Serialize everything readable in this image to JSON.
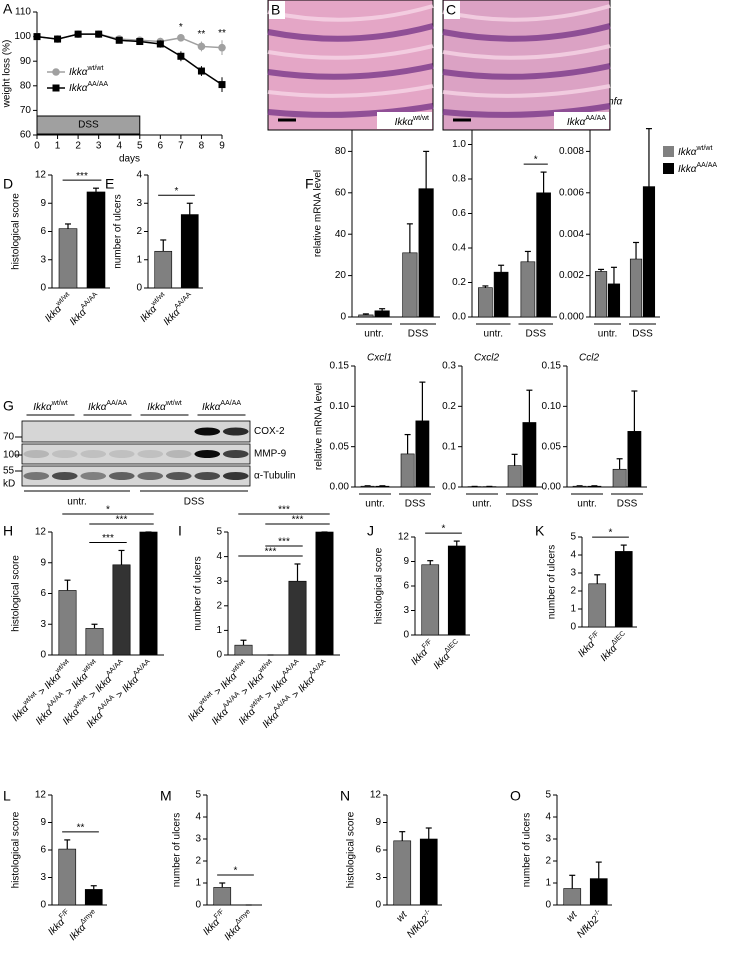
{
  "chart_data": [
    {
      "type": "line",
      "panel_label": "A",
      "xlabel": "days",
      "ylabel": "weight loss (%)",
      "xlim": [
        0,
        9
      ],
      "xticks": [
        0,
        1,
        2,
        3,
        4,
        5,
        6,
        7,
        8,
        9
      ],
      "ylim": [
        60,
        110
      ],
      "yticks": [
        60,
        70,
        80,
        90,
        100,
        110
      ],
      "x": [
        0,
        1,
        2,
        3,
        4,
        5,
        6,
        7,
        8,
        9
      ],
      "series": [
        {
          "name": "Ikkα",
          "sup": "wt/wt",
          "color": "#a0a0a0",
          "marker": "circle",
          "values": [
            100,
            99,
            101,
            101,
            99,
            98.5,
            98,
            99.5,
            96,
            95.5
          ],
          "errors": [
            0.3,
            0.8,
            0.5,
            0.5,
            1,
            1,
            1.5,
            1.5,
            2,
            3
          ]
        },
        {
          "name": "Ikkα",
          "sup": "AA/AA",
          "color": "#000000",
          "marker": "square",
          "values": [
            100,
            99,
            101,
            101,
            98.5,
            98,
            97,
            92,
            86,
            80.5
          ],
          "errors": [
            0.3,
            0.8,
            0.5,
            0.5,
            1,
            1,
            1.5,
            2,
            2,
            3
          ]
        }
      ],
      "annotations": [
        {
          "x": 7,
          "label": "*"
        },
        {
          "x": 8,
          "label": "**"
        },
        {
          "x": 9,
          "label": "**"
        }
      ],
      "band": {
        "label": "DSS",
        "start": 0,
        "end": 5
      }
    },
    {
      "type": "bar",
      "panel_label": "D",
      "ylabel": "histological score",
      "ylim": [
        0,
        12
      ],
      "yticks": [
        0,
        3,
        6,
        9,
        12
      ],
      "categories": [
        [
          {
            "text": "Ikkα",
            "sup": "wt/wt"
          }
        ],
        [
          {
            "text": "Ikkα",
            "sup": "AA/AA"
          }
        ]
      ],
      "values": [
        6.3,
        10.2
      ],
      "errors": [
        0.5,
        0.4
      ],
      "colors": [
        "#808080",
        "#000000"
      ],
      "significance": [
        {
          "from": 0,
          "to": 1,
          "label": "***"
        }
      ]
    },
    {
      "type": "bar",
      "panel_label": "E",
      "ylabel": "number of ulcers",
      "ylim": [
        0,
        4
      ],
      "yticks": [
        0,
        1,
        2,
        3,
        4
      ],
      "categories": [
        [
          {
            "text": "Ikkα",
            "sup": "wt/wt"
          }
        ],
        [
          {
            "text": "Ikkα",
            "sup": "AA/AA"
          }
        ]
      ],
      "values": [
        1.3,
        2.6
      ],
      "errors": [
        0.4,
        0.4
      ],
      "colors": [
        "#808080",
        "#000000"
      ],
      "significance": [
        {
          "from": 0,
          "to": 1,
          "label": "*"
        }
      ]
    },
    {
      "type": "grouped_bar",
      "panel_label": "F",
      "title": "Il1β",
      "ylabel": "relative mRNA level",
      "ylim": [
        0,
        100
      ],
      "yticks": [
        0,
        20,
        40,
        60,
        80,
        100
      ],
      "groups": [
        "untr.",
        "DSS"
      ],
      "series": [
        {
          "color": "#808080",
          "values": [
            1,
            31
          ],
          "errors": [
            0.5,
            14
          ]
        },
        {
          "color": "#000000",
          "values": [
            3,
            62
          ],
          "errors": [
            1,
            18
          ]
        }
      ]
    },
    {
      "type": "grouped_bar",
      "title": "Il6",
      "ylim": [
        0,
        1.2
      ],
      "yticks": [
        {
          "value": 0,
          "label": "0.0"
        },
        0.2,
        0.4,
        0.6,
        0.8,
        {
          "value": 1,
          "label": "1.0"
        },
        1.2
      ],
      "groups": [
        "untr.",
        "DSS"
      ],
      "series": [
        {
          "color": "#808080",
          "values": [
            0.17,
            0.32
          ],
          "errors": [
            0.01,
            0.06
          ]
        },
        {
          "color": "#000000",
          "values": [
            0.26,
            0.72
          ],
          "errors": [
            0.04,
            0.12
          ]
        }
      ],
      "significance": [
        {
          "group": 1,
          "label": "*"
        }
      ]
    },
    {
      "type": "grouped_bar",
      "title": "Tnfα",
      "ylim": [
        0,
        0.01
      ],
      "yticks": [
        {
          "value": 0,
          "label": "0.000"
        },
        0.002,
        0.004,
        0.006,
        0.008,
        {
          "value": 0.01,
          "label": "0.010"
        }
      ],
      "groups": [
        "untr.",
        "DSS"
      ],
      "series": [
        {
          "name": "Ikkα",
          "sup": "wt/wt",
          "color": "#808080",
          "values": [
            0.0022,
            0.0028
          ],
          "errors": [
            0.0001,
            0.0008
          ]
        },
        {
          "name": "Ikkα",
          "sup": "AA/AA",
          "color": "#000000",
          "values": [
            0.0016,
            0.0063
          ],
          "errors": [
            0.0008,
            0.0028
          ]
        }
      ]
    },
    {
      "type": "grouped_bar",
      "title": "Cxcl1",
      "ylabel": "relative mRNA level",
      "ylim": [
        0,
        0.15
      ],
      "yticks": [
        {
          "value": 0,
          "label": "0.00"
        },
        0.05,
        {
          "value": 0.1,
          "label": "0.10"
        },
        0.15
      ],
      "groups": [
        "untr.",
        "DSS"
      ],
      "series": [
        {
          "color": "#808080",
          "values": [
            0.001,
            0.041
          ],
          "errors": [
            0.0005,
            0.024
          ]
        },
        {
          "color": "#000000",
          "values": [
            0.001,
            0.082
          ],
          "errors": [
            0.0005,
            0.048
          ]
        }
      ]
    },
    {
      "type": "grouped_bar",
      "title": "Cxcl2",
      "ylim": [
        0,
        0.3
      ],
      "yticks": [
        {
          "value": 0,
          "label": "0.0"
        },
        0.1,
        0.2,
        0.3
      ],
      "groups": [
        "untr.",
        "DSS"
      ],
      "series": [
        {
          "color": "#808080",
          "values": [
            0.001,
            0.053
          ],
          "errors": [
            0.0005,
            0.028
          ]
        },
        {
          "color": "#000000",
          "values": [
            0.001,
            0.16
          ],
          "errors": [
            0.0005,
            0.08
          ]
        }
      ]
    },
    {
      "type": "grouped_bar",
      "title": "Ccl2",
      "ylim": [
        0,
        0.15
      ],
      "yticks": [
        {
          "value": 0,
          "label": "0.00"
        },
        0.05,
        {
          "value": 0.1,
          "label": "0.10"
        },
        0.15
      ],
      "groups": [
        "untr.",
        "DSS"
      ],
      "series": [
        {
          "color": "#808080",
          "values": [
            0.001,
            0.022
          ],
          "errors": [
            0.0005,
            0.013
          ]
        },
        {
          "color": "#000000",
          "values": [
            0.001,
            0.069
          ],
          "errors": [
            0.0005,
            0.05
          ]
        }
      ]
    },
    {
      "type": "bar",
      "panel_label": "H",
      "ylabel": "histological score",
      "ylim": [
        0,
        12
      ],
      "yticks": [
        0,
        3,
        6,
        9,
        12
      ],
      "categories": [
        [
          {
            "text": "Ikkα",
            "sup": "wt/wt"
          },
          {
            "text": " > Ikkα",
            "sup": "wt/wt"
          }
        ],
        [
          {
            "text": "Ikkα",
            "sup": "AA/AA"
          },
          {
            "text": " > Ikkα",
            "sup": "wt/wt"
          }
        ],
        [
          {
            "text": "Ikkα",
            "sup": "wt/wt"
          },
          {
            "text": " > Ikkα",
            "sup": "AA/AA"
          }
        ],
        [
          {
            "text": "Ikkα",
            "sup": "AA/AA"
          },
          {
            "text": " > Ikkα",
            "sup": "AA/AA"
          }
        ]
      ],
      "values": [
        6.3,
        2.6,
        8.8,
        12
      ],
      "errors": [
        1,
        0.4,
        1.4,
        0
      ],
      "colors": [
        "#808080",
        "#808080",
        "#333333",
        "#000000"
      ],
      "significance": [
        {
          "from": 0,
          "to": 3,
          "label": "*"
        },
        {
          "from": 1,
          "to": 3,
          "label": "***"
        },
        {
          "from": 1,
          "to": 2,
          "label": "***"
        }
      ]
    },
    {
      "type": "bar",
      "panel_label": "I",
      "ylabel": "number of ulcers",
      "ylim": [
        0,
        5
      ],
      "yticks": [
        0,
        1,
        2,
        3,
        4,
        5
      ],
      "categories": [
        [
          {
            "text": "Ikkα",
            "sup": "wt/wt"
          },
          {
            "text": " > Ikkα",
            "sup": "wt/wt"
          }
        ],
        [
          {
            "text": "Ikkα",
            "sup": "AA/AA"
          },
          {
            "text": " > Ikkα",
            "sup": "wt/wt"
          }
        ],
        [
          {
            "text": "Ikkα",
            "sup": "wt/wt"
          },
          {
            "text": " > Ikkα",
            "sup": "AA/AA"
          }
        ],
        [
          {
            "text": "Ikkα",
            "sup": "AA/AA"
          },
          {
            "text": " > Ikkα",
            "sup": "AA/AA"
          }
        ]
      ],
      "values": [
        0.4,
        0,
        3,
        5
      ],
      "errors": [
        0.2,
        0,
        0.7,
        0
      ],
      "colors": [
        "#808080",
        "#808080",
        "#333333",
        "#000000"
      ],
      "significance": [
        {
          "from": 0,
          "to": 3,
          "label": "***"
        },
        {
          "from": 1,
          "to": 3,
          "label": "***"
        },
        {
          "from": 1,
          "to": 2,
          "label": "***"
        },
        {
          "from": 0,
          "to": 2,
          "label": "***"
        }
      ]
    },
    {
      "type": "bar",
      "panel_label": "J",
      "ylabel": "histological score",
      "ylim": [
        0,
        12
      ],
      "yticks": [
        0,
        3,
        6,
        9,
        12
      ],
      "categories": [
        [
          {
            "text": "Ikkα",
            "sup": "F/F"
          }
        ],
        [
          {
            "text": "Ikkα",
            "sup": "ΔIEC"
          }
        ]
      ],
      "values": [
        8.6,
        10.9
      ],
      "errors": [
        0.5,
        0.6
      ],
      "colors": [
        "#808080",
        "#000000"
      ],
      "significance": [
        {
          "from": 0,
          "to": 1,
          "label": "*"
        }
      ]
    },
    {
      "type": "bar",
      "panel_label": "K",
      "ylabel": "number of ulcers",
      "ylim": [
        0,
        5
      ],
      "yticks": [
        0,
        1,
        2,
        3,
        4,
        5
      ],
      "categories": [
        [
          {
            "text": "Ikkα",
            "sup": "F/F"
          }
        ],
        [
          {
            "text": "Ikkα",
            "sup": "ΔIEC"
          }
        ]
      ],
      "values": [
        2.4,
        4.2
      ],
      "errors": [
        0.5,
        0.35
      ],
      "colors": [
        "#808080",
        "#000000"
      ],
      "significance": [
        {
          "from": 0,
          "to": 1,
          "label": "*"
        }
      ]
    },
    {
      "type": "bar",
      "panel_label": "L",
      "ylabel": "histological score",
      "ylim": [
        0,
        12
      ],
      "yticks": [
        0,
        3,
        6,
        9,
        12
      ],
      "categories": [
        [
          {
            "text": "Ikkα",
            "sup": "F/F"
          }
        ],
        [
          {
            "text": "Ikkα",
            "sup": "Δmye"
          }
        ]
      ],
      "values": [
        6.1,
        1.7
      ],
      "errors": [
        1,
        0.4
      ],
      "colors": [
        "#808080",
        "#000000"
      ],
      "significance": [
        {
          "from": 0,
          "to": 1,
          "label": "**"
        }
      ]
    },
    {
      "type": "bar",
      "panel_label": "M",
      "ylabel": "number of ulcers",
      "ylim": [
        0,
        5
      ],
      "yticks": [
        0,
        1,
        2,
        3,
        4,
        5
      ],
      "categories": [
        [
          {
            "text": "Ikkα",
            "sup": "F/F"
          }
        ],
        [
          {
            "text": "Ikkα",
            "sup": "Δmye"
          }
        ]
      ],
      "values": [
        0.8,
        0
      ],
      "errors": [
        0.2,
        0
      ],
      "colors": [
        "#808080",
        "#000000"
      ],
      "significance": [
        {
          "from": 0,
          "to": 1,
          "label": "*"
        }
      ]
    },
    {
      "type": "bar",
      "panel_label": "N",
      "ylabel": "histological score",
      "ylim": [
        0,
        12
      ],
      "yticks": [
        0,
        3,
        6,
        9,
        12
      ],
      "categories": [
        [
          {
            "text": "wt"
          }
        ],
        [
          {
            "text": "Nfkb2",
            "sup": "-/-"
          }
        ]
      ],
      "values": [
        7,
        7.2
      ],
      "errors": [
        1,
        1.2
      ],
      "colors": [
        "#808080",
        "#000000"
      ]
    },
    {
      "type": "bar",
      "panel_label": "O",
      "ylabel": "number of ulcers",
      "ylim": [
        0,
        5
      ],
      "yticks": [
        0,
        1,
        2,
        3,
        4,
        5
      ],
      "categories": [
        [
          {
            "text": "wt"
          }
        ],
        [
          {
            "text": "Nfkb2",
            "sup": "-/-"
          }
        ]
      ],
      "values": [
        0.75,
        1.2
      ],
      "errors": [
        0.6,
        0.75
      ],
      "colors": [
        "#808080",
        "#000000"
      ]
    }
  ],
  "images": [
    {
      "panel_label": "B",
      "caption": [
        {
          "text": "Ikkα",
          "sup": "wt/wt"
        }
      ]
    },
    {
      "panel_label": "C",
      "caption": [
        {
          "text": "Ikkα",
          "sup": "AA/AA"
        }
      ]
    }
  ],
  "blot": {
    "panel_label": "G",
    "lane_groups": [
      [
        {
          "text": "Ikkα",
          "sup": "wt/wt"
        }
      ],
      [
        {
          "text": "Ikkα",
          "sup": "AA/AA"
        }
      ],
      [
        {
          "text": "Ikkα",
          "sup": "wt/wt"
        }
      ],
      [
        {
          "text": "Ikkα",
          "sup": "AA/AA"
        }
      ]
    ],
    "proteins": [
      "COX-2",
      "MMP-9",
      "α-Tubulin"
    ],
    "markers": [
      "70",
      "100",
      "55"
    ],
    "unit": "kD",
    "conditions": [
      "untr.",
      "DSS"
    ]
  }
}
